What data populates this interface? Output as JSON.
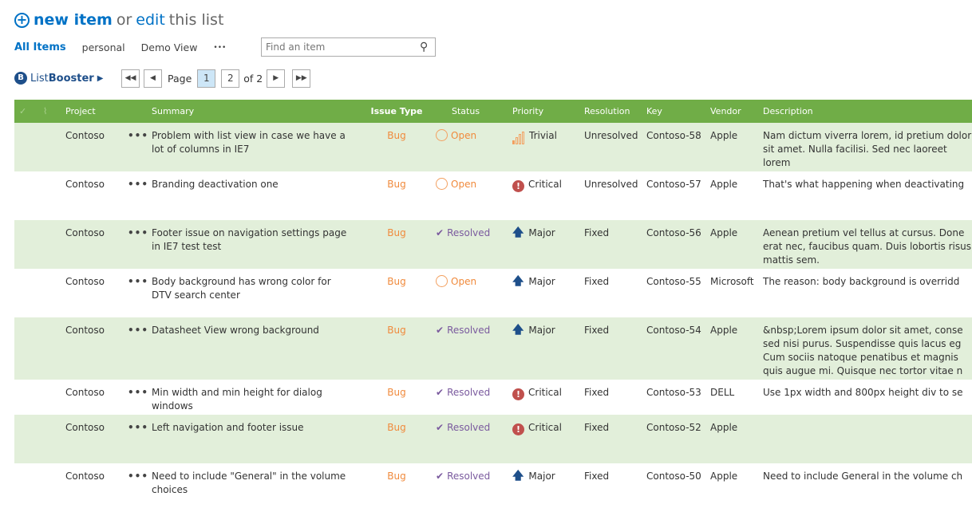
{
  "header": {
    "new_item": "new item",
    "or": "or",
    "edit": "edit",
    "this_list": "this list"
  },
  "views": [
    {
      "label": "All Items",
      "active": true
    },
    {
      "label": "personal"
    },
    {
      "label": "Demo View"
    },
    {
      "label": "•••"
    }
  ],
  "search": {
    "placeholder": "Find an item"
  },
  "listbooster": {
    "prefix": "List",
    "suffix": "Booster",
    "arrow": "▶"
  },
  "pager": {
    "page_label": "Page",
    "pages": [
      "1",
      "2"
    ],
    "current": "1",
    "of": "of 2"
  },
  "columns": [
    "Project",
    "Summary",
    "Issue Type",
    "Status",
    "Priority",
    "Resolution",
    "Key",
    "Vendor",
    "Description"
  ],
  "colors": {
    "header": "#70ad47",
    "alt_row": "#e2efda",
    "accent": "#0072c6",
    "open": "#f08a3c",
    "resolved": "#7a5a9e",
    "critical": "#c0504d",
    "major": "#1e4f8a"
  },
  "rows": [
    {
      "project": "Contoso",
      "summary": "Problem with list view in case we have a lot of columns in IE7",
      "type": "Bug",
      "status": "Open",
      "status_icon": "circle-icon",
      "priority": "Trivial",
      "priority_icon": "signal-bars-icon",
      "resolution": "Unresolved",
      "key": "Contoso-58",
      "vendor": "Apple",
      "description": "Nam dictum viverra lorem, id pretium dolor sit amet. Nulla facilisi. Sed nec laoreet lorem"
    },
    {
      "project": "Contoso",
      "summary": "Branding deactivation one",
      "type": "Bug",
      "status": "Open",
      "status_icon": "circle-icon",
      "priority": "Critical",
      "priority_icon": "exclamation-icon",
      "resolution": "Unresolved",
      "key": "Contoso-57",
      "vendor": "Apple",
      "description": "That's what happening when deactivating"
    },
    {
      "project": "Contoso",
      "summary": "Footer issue on navigation settings page in IE7 test test",
      "type": "Bug",
      "status": "Resolved",
      "status_icon": "check-icon",
      "priority": "Major",
      "priority_icon": "arrow-up-icon",
      "resolution": "Fixed",
      "key": "Contoso-56",
      "vendor": "Apple",
      "description": "Aenean pretium vel tellus at cursus. Done erat nec, faucibus quam. Duis lobortis risus mattis sem."
    },
    {
      "project": "Contoso",
      "summary": "Body background has wrong color for DTV search center",
      "type": "Bug",
      "status": "Open",
      "status_icon": "circle-icon",
      "priority": "Major",
      "priority_icon": "arrow-up-icon",
      "resolution": "Fixed",
      "key": "Contoso-55",
      "vendor": "Microsoft",
      "description": "The reason: body background is overridd"
    },
    {
      "project": "Contoso",
      "summary": "Datasheet View wrong background",
      "type": "Bug",
      "status": "Resolved",
      "status_icon": "check-icon",
      "priority": "Major",
      "priority_icon": "arrow-up-icon",
      "resolution": "Fixed",
      "key": "Contoso-54",
      "vendor": "Apple",
      "description": "&nbsp;Lorem ipsum dolor sit amet, conse sed nisi purus. Suspendisse quis lacus eg Cum sociis natoque penatibus et magnis quis augue mi. Quisque nec tortor vitae n"
    },
    {
      "project": "Contoso",
      "summary": "Min width and min height for dialog windows",
      "type": "Bug",
      "status": "Resolved",
      "status_icon": "check-icon",
      "priority": "Critical",
      "priority_icon": "exclamation-icon",
      "resolution": "Fixed",
      "key": "Contoso-53",
      "vendor": "DELL",
      "description": "Use 1px width and 800px height div to se"
    },
    {
      "project": "Contoso",
      "summary": "Left navigation and footer issue",
      "type": "Bug",
      "status": "Resolved",
      "status_icon": "check-icon",
      "priority": "Critical",
      "priority_icon": "exclamation-icon",
      "resolution": "Fixed",
      "key": "Contoso-52",
      "vendor": "Apple",
      "description": ""
    },
    {
      "project": "Contoso",
      "summary": "Need to include \"General\" in the volume choices",
      "type": "Bug",
      "status": "Resolved",
      "status_icon": "check-icon",
      "priority": "Major",
      "priority_icon": "arrow-up-icon",
      "resolution": "Fixed",
      "key": "Contoso-50",
      "vendor": "Apple",
      "description": "Need to include General in the volume ch"
    }
  ]
}
